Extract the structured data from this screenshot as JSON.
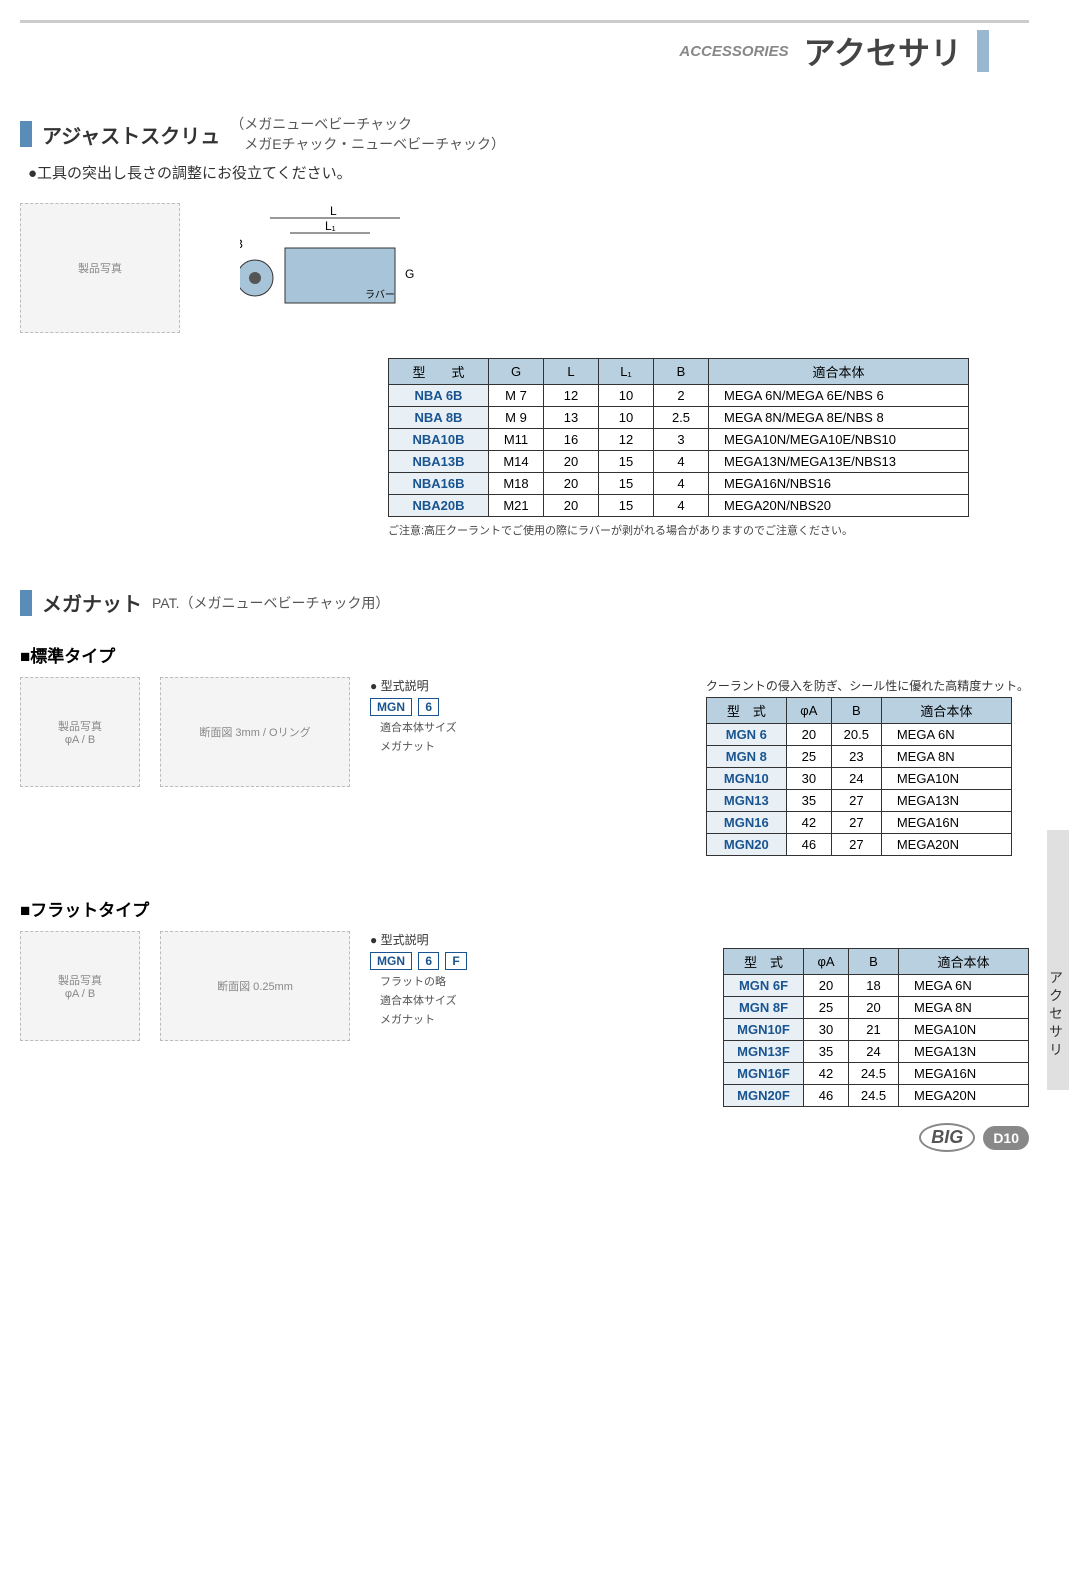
{
  "header": {
    "sub": "ACCESSORIES",
    "main": "アクセサリ"
  },
  "section1": {
    "title": "アジャストスクリュ",
    "paren1": "メガニューベビーチャック",
    "paren2": "メガEチャック・ニューベビーチャック",
    "desc": "●工具の突出し長さの調整にお役立てください。",
    "diagram_labels": {
      "L": "L",
      "L1": "L₁",
      "B": "B",
      "G": "G",
      "rubber": "ラバー"
    },
    "table": {
      "headers": [
        "型　　式",
        "G",
        "L",
        "L₁",
        "B",
        "適合本体"
      ],
      "rows": [
        [
          "NBA  6B",
          "M  7",
          "12",
          "10",
          "2",
          "MEGA  6N/MEGA  6E/NBS  6"
        ],
        [
          "NBA  8B",
          "M  9",
          "13",
          "10",
          "2.5",
          "MEGA  8N/MEGA  8E/NBS  8"
        ],
        [
          "NBA10B",
          "M11",
          "16",
          "12",
          "3",
          "MEGA10N/MEGA10E/NBS10"
        ],
        [
          "NBA13B",
          "M14",
          "20",
          "15",
          "4",
          "MEGA13N/MEGA13E/NBS13"
        ],
        [
          "NBA16B",
          "M18",
          "20",
          "15",
          "4",
          "MEGA16N/NBS16"
        ],
        [
          "NBA20B",
          "M21",
          "20",
          "15",
          "4",
          "MEGA20N/NBS20"
        ]
      ],
      "note": "ご注意:高圧クーラントでご使用の際にラバーが剥がれる場合がありますのでご注意ください。"
    }
  },
  "section2": {
    "title": "メガナット",
    "title_sub": "PAT.（メガニューベビーチャック用）",
    "sub1": {
      "heading": "■標準タイプ",
      "note": "クーラントの侵入を防ぎ、シール性に優れた高精度ナット。",
      "diagram_labels": {
        "phiA": "φA",
        "B": "B",
        "gap": "3mm",
        "oring": "Oリング"
      },
      "explain": {
        "label": "● 型式説明",
        "boxes": [
          "MGN",
          "6"
        ],
        "desc1": "適合本体サイズ",
        "desc2": "メガナット"
      },
      "table": {
        "headers": [
          "型　式",
          "φA",
          "B",
          "適合本体"
        ],
        "rows": [
          [
            "MGN  6",
            "20",
            "20.5",
            "MEGA  6N"
          ],
          [
            "MGN  8",
            "25",
            "23",
            "MEGA  8N"
          ],
          [
            "MGN10",
            "30",
            "24",
            "MEGA10N"
          ],
          [
            "MGN13",
            "35",
            "27",
            "MEGA13N"
          ],
          [
            "MGN16",
            "42",
            "27",
            "MEGA16N"
          ],
          [
            "MGN20",
            "46",
            "27",
            "MEGA20N"
          ]
        ]
      }
    },
    "sub2": {
      "heading": "■フラットタイプ",
      "diagram_labels": {
        "phiA": "φA",
        "B": "B",
        "gap": "0.25mm"
      },
      "explain": {
        "label": "● 型式説明",
        "boxes": [
          "MGN",
          "6",
          "F"
        ],
        "desc0": "フラットの略",
        "desc1": "適合本体サイズ",
        "desc2": "メガナット"
      },
      "table": {
        "headers": [
          "型　式",
          "φA",
          "B",
          "適合本体"
        ],
        "rows": [
          [
            "MGN  6F",
            "20",
            "18",
            "MEGA  6N"
          ],
          [
            "MGN  8F",
            "25",
            "20",
            "MEGA  8N"
          ],
          [
            "MGN10F",
            "30",
            "21",
            "MEGA10N"
          ],
          [
            "MGN13F",
            "35",
            "24",
            "MEGA13N"
          ],
          [
            "MGN16F",
            "42",
            "24.5",
            "MEGA16N"
          ],
          [
            "MGN20F",
            "46",
            "24.5",
            "MEGA20N"
          ]
        ]
      }
    }
  },
  "side_label": "アクセサリ",
  "footer": {
    "brand": "BIG",
    "page": "D10"
  }
}
